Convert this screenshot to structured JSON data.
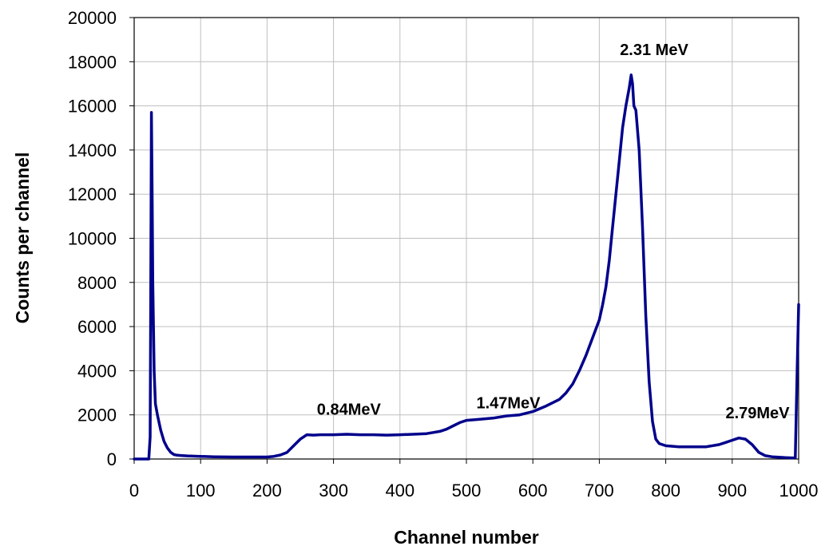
{
  "chart_data": {
    "type": "line",
    "title": "",
    "xlabel": "Channel number",
    "ylabel": "Counts per channel",
    "xlim": [
      0,
      1000
    ],
    "ylim": [
      0,
      20000
    ],
    "x_ticks": [
      0,
      100,
      200,
      300,
      400,
      500,
      600,
      700,
      800,
      900,
      1000
    ],
    "y_ticks": [
      0,
      2000,
      4000,
      6000,
      8000,
      10000,
      12000,
      14000,
      16000,
      18000,
      20000
    ],
    "grid": true,
    "legend": "none",
    "line_color": "#00008B",
    "series": [
      {
        "x": [
          0,
          20,
          22,
          24,
          25,
          26,
          27,
          28,
          30,
          32,
          35,
          40,
          45,
          50,
          55,
          60,
          65,
          70,
          80,
          100,
          120,
          150,
          180,
          200,
          210,
          220,
          230,
          240,
          250,
          260,
          270,
          280,
          300,
          320,
          340,
          360,
          380,
          400,
          420,
          440,
          450,
          460,
          470,
          480,
          490,
          500,
          520,
          540,
          560,
          580,
          600,
          620,
          640,
          650,
          660,
          670,
          680,
          690,
          700,
          705,
          710,
          715,
          720,
          725,
          730,
          735,
          740,
          745,
          748,
          750,
          752,
          755,
          760,
          765,
          770,
          775,
          780,
          785,
          790,
          800,
          820,
          840,
          860,
          880,
          890,
          900,
          910,
          920,
          930,
          940,
          950,
          960,
          970,
          980,
          990,
          995,
          998,
          1000
        ],
        "y": [
          0,
          0,
          0,
          1000,
          8000,
          15700,
          12000,
          8000,
          4000,
          2500,
          2000,
          1300,
          800,
          500,
          300,
          200,
          170,
          160,
          140,
          120,
          100,
          90,
          90,
          90,
          120,
          180,
          300,
          600,
          900,
          1100,
          1080,
          1100,
          1100,
          1120,
          1100,
          1100,
          1080,
          1100,
          1120,
          1150,
          1200,
          1250,
          1350,
          1500,
          1650,
          1750,
          1800,
          1850,
          1950,
          2000,
          2150,
          2400,
          2700,
          3000,
          3400,
          4000,
          4700,
          5500,
          6300,
          7000,
          7800,
          9000,
          10500,
          12000,
          13500,
          15000,
          16000,
          16800,
          17400,
          17000,
          16000,
          15800,
          14000,
          10500,
          6500,
          3500,
          1700,
          900,
          700,
          600,
          550,
          550,
          550,
          650,
          750,
          850,
          950,
          900,
          650,
          300,
          150,
          100,
          80,
          60,
          50,
          60,
          4300,
          7000
        ]
      }
    ],
    "annotations": [
      {
        "text": "0.84MeV",
        "x": 275,
        "y": 2000
      },
      {
        "text": "1.47MeV",
        "x": 515,
        "y": 2300
      },
      {
        "text": "2.31 MeV",
        "x": 731,
        "y": 18300
      },
      {
        "text": "2.79MeV",
        "x": 890,
        "y": 1850
      }
    ]
  }
}
